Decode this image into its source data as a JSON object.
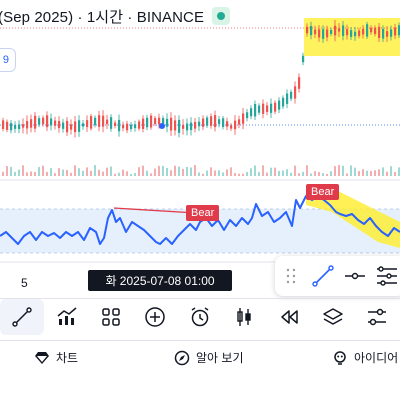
{
  "header": {
    "title": "(Sep 2025) · 1시간 · BINANCE"
  },
  "chip_text": "9",
  "annotations": {
    "bear_left": "Bear",
    "bear_right": "Bear"
  },
  "axis_tick": "5",
  "crosshair_date": "화 2025-07-08   01:00",
  "toolbar": {
    "items": [
      "trendline-icon",
      "indicators-icon",
      "grid-icon",
      "add-icon",
      "alarm-icon",
      "replay-icon",
      "rewind-icon",
      "layers-icon",
      "settings-icon"
    ]
  },
  "tabs": {
    "chart": "차트",
    "learn": "알아 보기",
    "ideas": "아이디어"
  },
  "colors": {
    "accent": "#2962ff",
    "bear": "#e03b4a",
    "highlight": "#ffee2a",
    "up": "#26a69a",
    "down": "#ef5350"
  }
}
